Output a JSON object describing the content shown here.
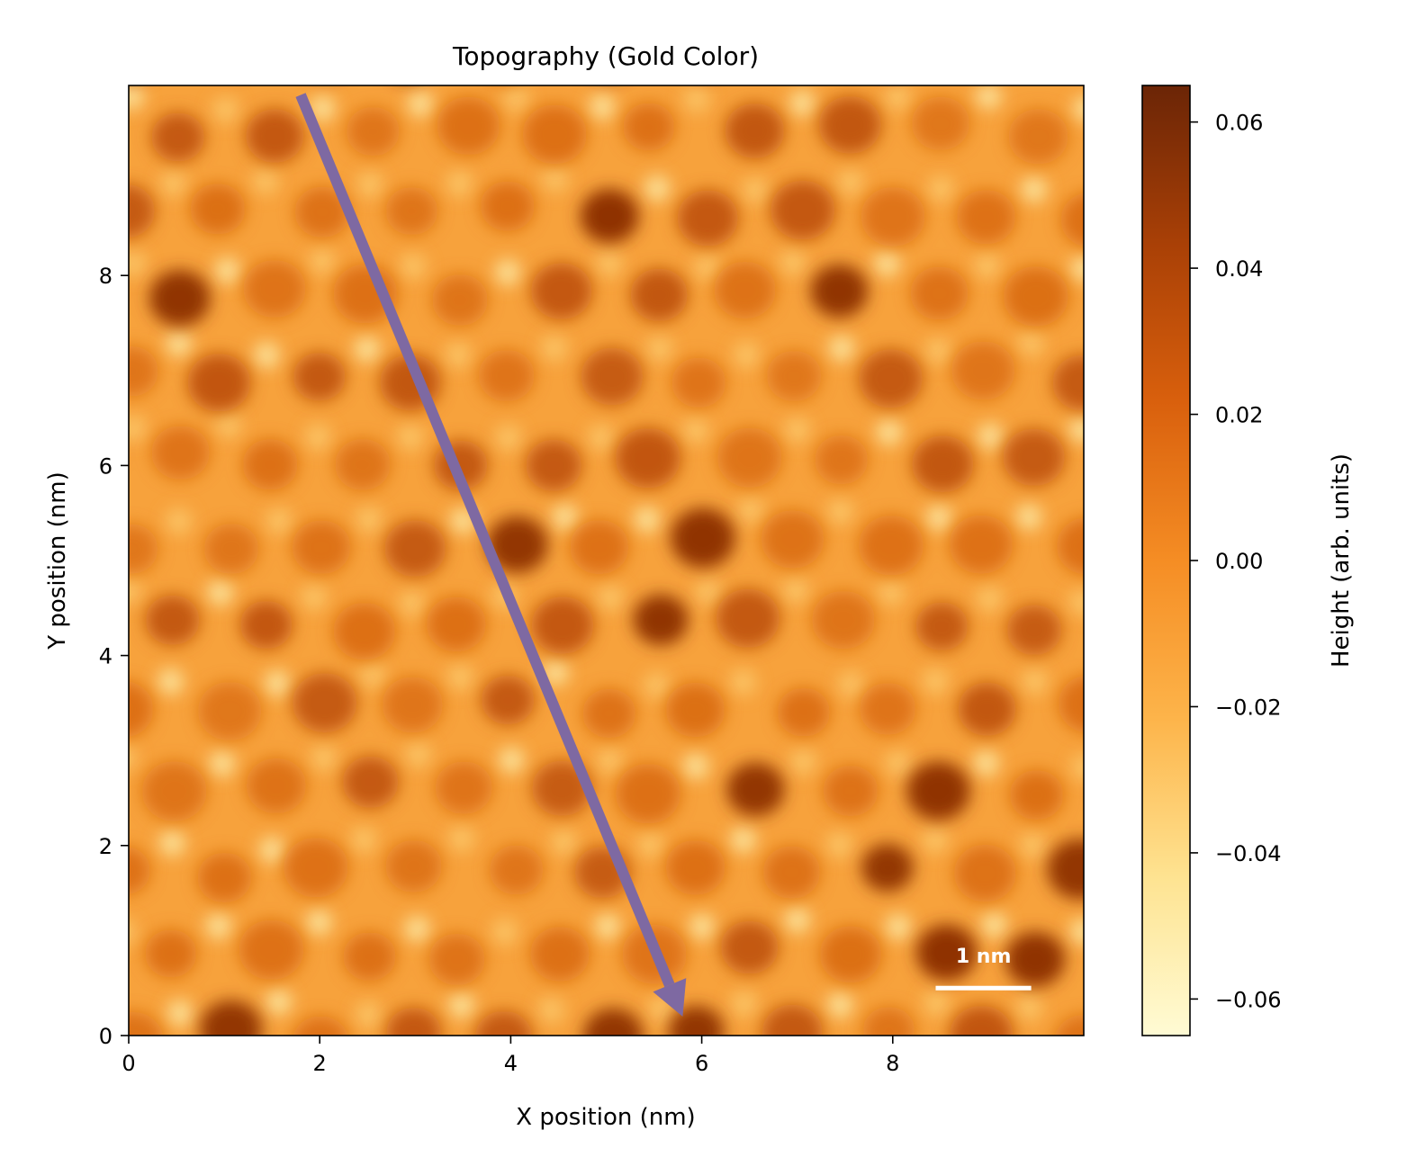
{
  "chart_data": {
    "type": "heatmap",
    "title": "Topography (Gold Color)",
    "xlabel": "X position (nm)",
    "ylabel": "Y position (nm)",
    "xlim": [
      0,
      10
    ],
    "ylim": [
      0,
      10
    ],
    "x_ticks": [
      0,
      2,
      4,
      6,
      8
    ],
    "y_ticks": [
      0,
      2,
      4,
      6,
      8
    ],
    "x_tick_labels": [
      "0",
      "2",
      "4",
      "6",
      "8"
    ],
    "y_tick_labels": [
      "0",
      "2",
      "4",
      "6",
      "8"
    ],
    "colorbar": {
      "label": "Height (arb. units)",
      "range": [
        -0.065,
        0.065
      ],
      "ticks": [
        0.06,
        0.04,
        0.02,
        0.0,
        -0.02,
        -0.04,
        -0.06
      ],
      "tick_labels": [
        "0.06",
        "0.04",
        "0.02",
        "0.00",
        "−0.02",
        "−0.04",
        "−0.06"
      ],
      "colormap": [
        "#fffbd4",
        "#fee391",
        "#fdb44a",
        "#f58d24",
        "#d9600d",
        "#a94006",
        "#6b2506"
      ]
    },
    "colormap_name": "gold",
    "lattice": {
      "type": "hexagonal",
      "period_nm": 1.0,
      "note_values": "dark depressions spaced ~1 nm on bright ridges"
    },
    "annotations": {
      "arrow": {
        "start": [
          1.8,
          9.9
        ],
        "end": [
          5.8,
          0.2
        ],
        "color": "#7e69a2"
      },
      "scale_bar": {
        "label": "1 nm",
        "length_nm": 1.0,
        "x_start": 8.45,
        "y": 0.5,
        "color": "#ffffff"
      }
    },
    "grid": false,
    "legend": "none"
  }
}
